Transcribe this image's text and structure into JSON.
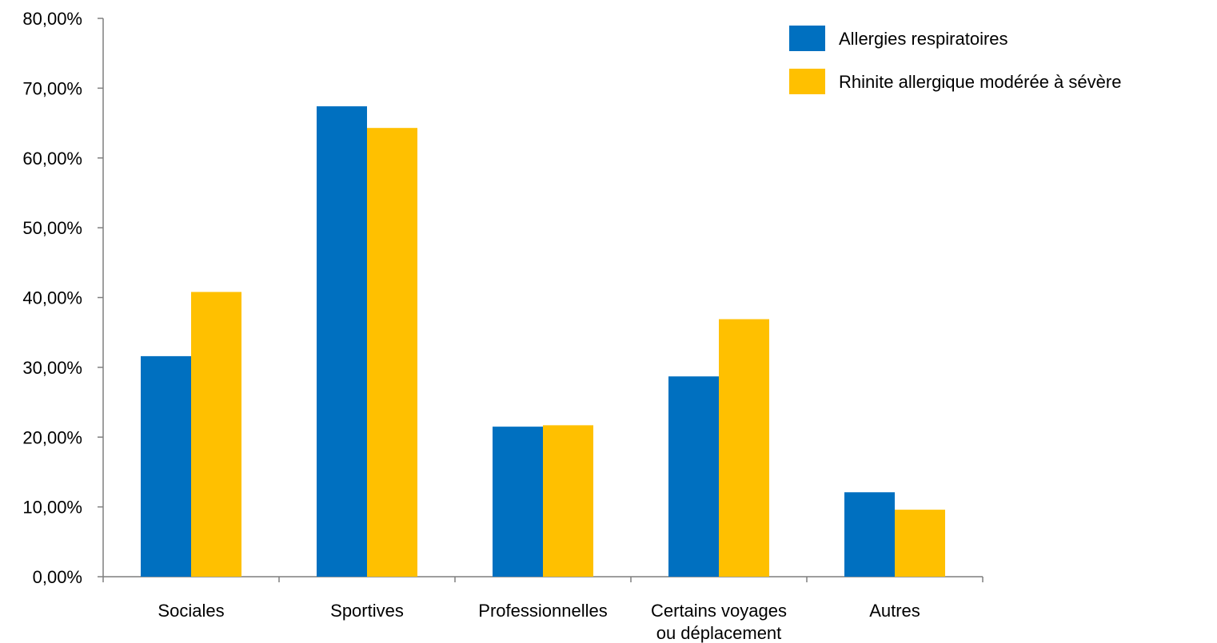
{
  "chart_data": {
    "type": "bar",
    "categories": [
      [
        "Sociales"
      ],
      [
        "Sportives"
      ],
      [
        "Professionnelles"
      ],
      [
        "Certains voyages",
        "ou déplacement"
      ],
      [
        "Autres"
      ]
    ],
    "series": [
      {
        "name": "Allergies respiratoires",
        "color": "#0070C0",
        "values": [
          31.6,
          67.4,
          21.5,
          28.7,
          12.1
        ]
      },
      {
        "name": "Rhinite allergique modérée à sévère",
        "color": "#FFC000",
        "values": [
          40.8,
          64.3,
          21.7,
          36.9,
          9.6
        ]
      }
    ],
    "ylim": [
      0,
      80
    ],
    "yticks": [
      "0,00%",
      "10,00%",
      "20,00%",
      "30,00%",
      "40,00%",
      "50,00%",
      "60,00%",
      "70,00%",
      "80,00%"
    ],
    "legend_position": "top-right",
    "grid": false
  }
}
